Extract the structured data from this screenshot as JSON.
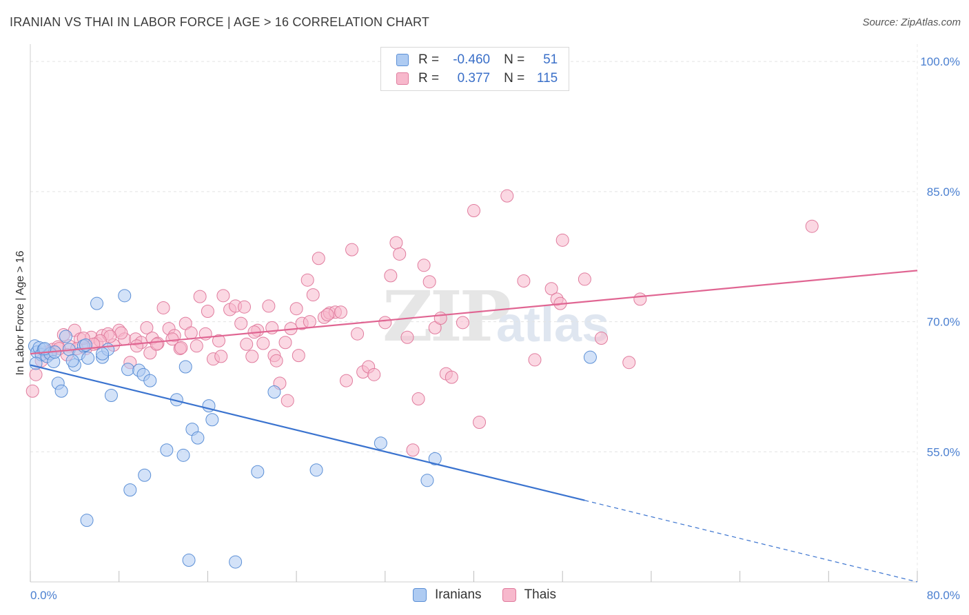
{
  "title": "IRANIAN VS THAI IN LABOR FORCE | AGE > 16 CORRELATION CHART",
  "source": "Source: ZipAtlas.com",
  "watermark": {
    "zip": "ZIP",
    "atlas": "atlas"
  },
  "legend": {
    "rows": [
      {
        "r_label": "R =",
        "r_value": "-0.460",
        "n_label": "N =",
        "n_value": "51",
        "color": "#aecbf2"
      },
      {
        "r_label": "R =",
        "r_value": "0.377",
        "n_label": "N =",
        "n_value": "115",
        "color": "#f7b8cc"
      }
    ]
  },
  "bottom_legend": {
    "iranians": "Iranians",
    "thais": "Thais"
  },
  "colors": {
    "iranians_fill": "#aecbf2",
    "iranians_stroke": "#5b8fd6",
    "iranians_line": "#3a73cf",
    "thais_fill": "#f7b8cc",
    "thais_stroke": "#e07b9d",
    "thais_line": "#e06592"
  },
  "chart_data": {
    "type": "scatter",
    "title": "IRANIAN VS THAI IN LABOR FORCE | AGE > 16 CORRELATION CHART",
    "xlabel": "",
    "ylabel": "In Labor Force | Age > 16",
    "xlim": [
      0,
      80
    ],
    "ylim": [
      40,
      102
    ],
    "x_tick_labels": [
      "0.0%",
      "80.0%"
    ],
    "y_ticks": [
      55,
      70,
      85,
      100
    ],
    "y_tick_labels": [
      "55.0%",
      "70.0%",
      "85.0%",
      "100.0%"
    ],
    "grid": true,
    "series": [
      {
        "name": "Iranians",
        "r": -0.46,
        "n": 51,
        "trend": {
          "x0": 0,
          "y0": 65.0,
          "x1": 50,
          "y1": 49.4,
          "dashed_to_x": 80,
          "dashed_to_y": 40.0
        },
        "points": [
          [
            0.4,
            67.2
          ],
          [
            0.6,
            66.5
          ],
          [
            0.8,
            67.0
          ],
          [
            1.0,
            66.2
          ],
          [
            1.2,
            66.8
          ],
          [
            1.5,
            66.0
          ],
          [
            1.8,
            66.3
          ],
          [
            2.1,
            65.4
          ],
          [
            2.5,
            62.9
          ],
          [
            2.8,
            62.0
          ],
          [
            3.2,
            68.3
          ],
          [
            3.5,
            66.8
          ],
          [
            4.0,
            65.0
          ],
          [
            4.4,
            66.3
          ],
          [
            4.8,
            67.2
          ],
          [
            5.0,
            67.3
          ],
          [
            6.0,
            72.1
          ],
          [
            6.5,
            65.9
          ],
          [
            7.0,
            66.8
          ],
          [
            7.3,
            61.5
          ],
          [
            8.5,
            73.0
          ],
          [
            8.8,
            64.5
          ],
          [
            9.0,
            50.6
          ],
          [
            9.8,
            64.4
          ],
          [
            10.2,
            63.9
          ],
          [
            10.3,
            52.3
          ],
          [
            10.8,
            63.2
          ],
          [
            12.3,
            55.2
          ],
          [
            13.2,
            61.0
          ],
          [
            13.8,
            54.6
          ],
          [
            14.0,
            64.8
          ],
          [
            14.3,
            42.5
          ],
          [
            14.6,
            57.6
          ],
          [
            15.1,
            56.6
          ],
          [
            16.1,
            60.3
          ],
          [
            16.4,
            58.7
          ],
          [
            18.5,
            42.3
          ],
          [
            20.5,
            52.7
          ],
          [
            22.0,
            61.9
          ],
          [
            25.8,
            52.9
          ],
          [
            31.6,
            56.0
          ],
          [
            35.8,
            51.7
          ],
          [
            36.5,
            54.2
          ],
          [
            6.5,
            66.3
          ],
          [
            5.2,
            65.8
          ],
          [
            3.8,
            65.5
          ],
          [
            2.2,
            66.5
          ],
          [
            1.3,
            66.9
          ],
          [
            0.5,
            65.2
          ],
          [
            5.1,
            47.1
          ],
          [
            50.5,
            65.9
          ]
        ]
      },
      {
        "name": "Thais",
        "r": 0.377,
        "n": 115,
        "trend": {
          "x0": 0,
          "y0": 66.3,
          "x1": 80,
          "y1": 75.9
        },
        "points": [
          [
            0.2,
            62.0
          ],
          [
            0.5,
            63.9
          ],
          [
            1.0,
            65.5
          ],
          [
            1.5,
            66.5
          ],
          [
            2.0,
            66.8
          ],
          [
            2.5,
            67.1
          ],
          [
            3.0,
            68.5
          ],
          [
            3.5,
            67.2
          ],
          [
            4.0,
            69.0
          ],
          [
            4.5,
            68.0
          ],
          [
            5.0,
            66.9
          ],
          [
            5.5,
            68.2
          ],
          [
            6.0,
            67.5
          ],
          [
            6.5,
            68.4
          ],
          [
            7.0,
            68.6
          ],
          [
            7.5,
            67.3
          ],
          [
            8.0,
            69.0
          ],
          [
            8.5,
            68.0
          ],
          [
            9.0,
            65.3
          ],
          [
            9.5,
            68.0
          ],
          [
            10.0,
            67.6
          ],
          [
            10.5,
            69.3
          ],
          [
            11.0,
            68.1
          ],
          [
            11.5,
            67.5
          ],
          [
            12.0,
            71.6
          ],
          [
            12.5,
            69.2
          ],
          [
            13.0,
            68.4
          ],
          [
            13.5,
            66.9
          ],
          [
            14.0,
            69.8
          ],
          [
            14.5,
            68.7
          ],
          [
            15.0,
            67.2
          ],
          [
            15.3,
            72.9
          ],
          [
            16.0,
            71.2
          ],
          [
            16.5,
            65.7
          ],
          [
            17.0,
            67.8
          ],
          [
            17.4,
            73.0
          ],
          [
            18.0,
            71.4
          ],
          [
            18.5,
            71.8
          ],
          [
            19.0,
            69.8
          ],
          [
            19.5,
            67.4
          ],
          [
            20.0,
            66.0
          ],
          [
            20.5,
            69.0
          ],
          [
            21.0,
            67.5
          ],
          [
            21.5,
            71.8
          ],
          [
            22.0,
            66.1
          ],
          [
            22.5,
            62.9
          ],
          [
            23.0,
            67.6
          ],
          [
            23.5,
            69.2
          ],
          [
            24.0,
            71.5
          ],
          [
            24.5,
            69.8
          ],
          [
            25.0,
            74.8
          ],
          [
            25.5,
            73.1
          ],
          [
            26.0,
            77.3
          ],
          [
            26.5,
            70.5
          ],
          [
            27.0,
            71.0
          ],
          [
            27.5,
            71.1
          ],
          [
            28.0,
            71.1
          ],
          [
            28.5,
            63.2
          ],
          [
            29.0,
            78.3
          ],
          [
            29.5,
            68.6
          ],
          [
            30.0,
            64.2
          ],
          [
            30.5,
            64.8
          ],
          [
            31.0,
            63.9
          ],
          [
            32.0,
            69.9
          ],
          [
            32.5,
            75.3
          ],
          [
            33.0,
            79.1
          ],
          [
            33.3,
            77.8
          ],
          [
            34.0,
            68.2
          ],
          [
            34.5,
            55.2
          ],
          [
            35.0,
            61.1
          ],
          [
            35.5,
            76.5
          ],
          [
            36.0,
            74.6
          ],
          [
            36.5,
            69.3
          ],
          [
            37.0,
            70.4
          ],
          [
            37.5,
            64.0
          ],
          [
            38.0,
            63.6
          ],
          [
            39.0,
            69.9
          ],
          [
            40.0,
            82.8
          ],
          [
            40.5,
            58.4
          ],
          [
            43.0,
            84.5
          ],
          [
            44.5,
            74.7
          ],
          [
            45.5,
            65.6
          ],
          [
            47.0,
            73.8
          ],
          [
            47.5,
            72.6
          ],
          [
            47.8,
            72.1
          ],
          [
            48.0,
            79.4
          ],
          [
            50.0,
            74.9
          ],
          [
            51.5,
            68.1
          ],
          [
            54.0,
            65.3
          ],
          [
            55.0,
            72.6
          ],
          [
            70.5,
            81.0
          ],
          [
            10.8,
            66.4
          ],
          [
            12.8,
            68.0
          ],
          [
            15.8,
            68.6
          ],
          [
            17.2,
            66.0
          ],
          [
            19.3,
            71.7
          ],
          [
            20.2,
            68.8
          ],
          [
            21.8,
            69.3
          ],
          [
            22.2,
            65.5
          ],
          [
            23.2,
            60.9
          ],
          [
            24.2,
            66.1
          ],
          [
            25.2,
            70.0
          ],
          [
            26.8,
            70.8
          ],
          [
            13.6,
            67.0
          ],
          [
            11.4,
            67.4
          ],
          [
            9.6,
            67.2
          ],
          [
            8.2,
            68.7
          ],
          [
            7.2,
            68.3
          ],
          [
            6.3,
            67.8
          ],
          [
            5.7,
            67.4
          ],
          [
            4.8,
            68.1
          ],
          [
            4.2,
            66.9
          ],
          [
            3.3,
            66.2
          ],
          [
            2.6,
            66.9
          ],
          [
            1.8,
            66.4
          ]
        ]
      }
    ]
  }
}
